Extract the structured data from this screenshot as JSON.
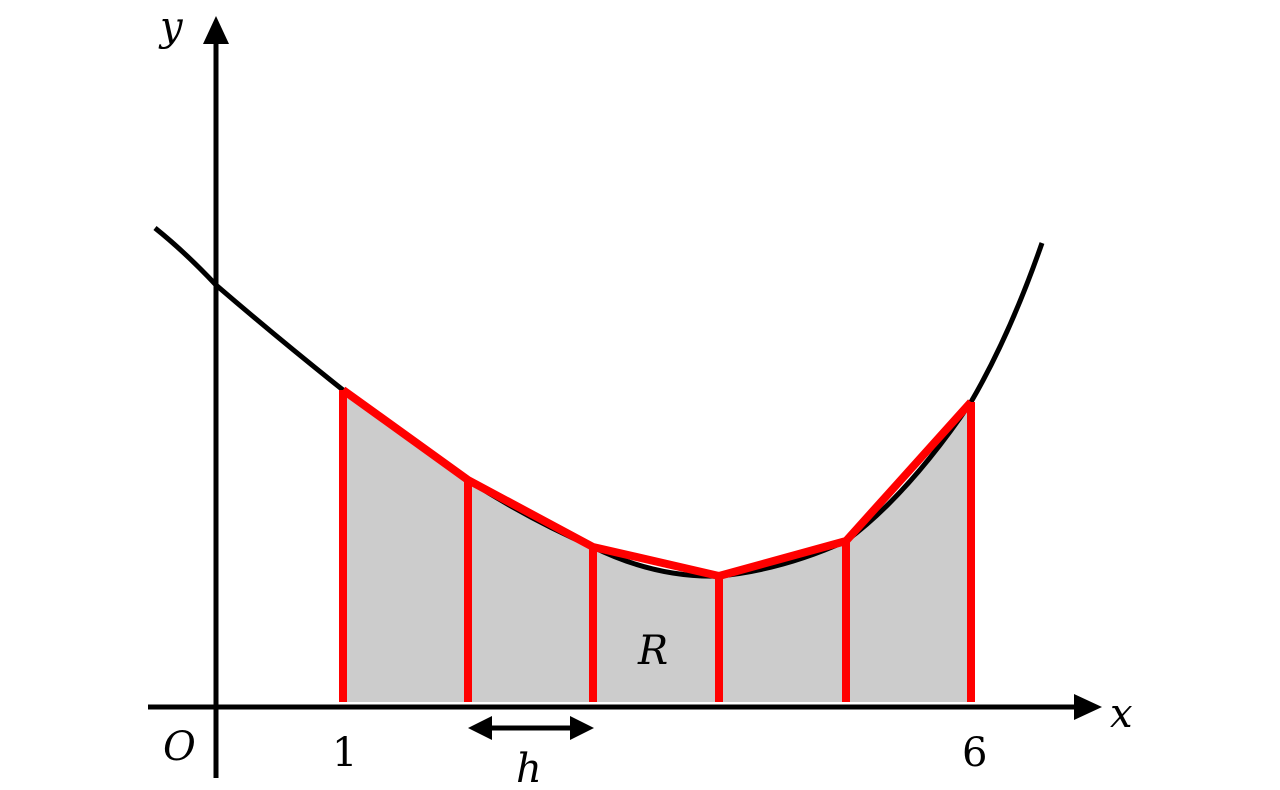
{
  "axes": {
    "x_label": "x",
    "y_label": "y",
    "origin_label": "O"
  },
  "ticks": {
    "left": "1",
    "right": "6"
  },
  "labels": {
    "strip_width": "h",
    "region": "R"
  },
  "colors": {
    "background": "#ffffff",
    "axis": "#000000",
    "curve": "#000000",
    "region_fill": "#cccccc",
    "trapezium": "#ff0000"
  }
}
